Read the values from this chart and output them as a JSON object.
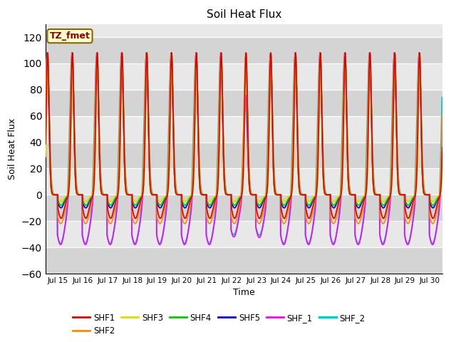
{
  "title": "Soil Heat Flux",
  "xlabel": "Time",
  "ylabel": "Soil Heat Flux",
  "ylim": [
    -60,
    130
  ],
  "yticks": [
    -60,
    -40,
    -20,
    0,
    20,
    40,
    60,
    80,
    100,
    120
  ],
  "xtick_labels": [
    "Jul 15",
    "Jul 16",
    "Jul 17",
    "Jul 18",
    "Jul 19",
    "Jul 20",
    "Jul 21",
    "Jul 22",
    "Jul 23",
    "Jul 24",
    "Jul 25",
    "Jul 26",
    "Jul 27",
    "Jul 28",
    "Jul 29",
    "Jul 30"
  ],
  "series": {
    "SHF1": {
      "color": "#dd0000",
      "lw": 1.2
    },
    "SHF2": {
      "color": "#ff8800",
      "lw": 1.2
    },
    "SHF3": {
      "color": "#dddd00",
      "lw": 1.2
    },
    "SHF4": {
      "color": "#00cc00",
      "lw": 1.2
    },
    "SHF5": {
      "color": "#0000dd",
      "lw": 1.2
    },
    "SHF_1": {
      "color": "#ff00ff",
      "lw": 1.2
    },
    "SHF_2": {
      "color": "#00cccc",
      "lw": 1.5
    }
  },
  "annotation_text": "TZ_fmet",
  "annotation_color": "#880000",
  "annotation_bg": "#ffffcc",
  "annotation_border": "#886600",
  "plot_bg_color": "#e8e8e8",
  "band_color": "#d4d4d4",
  "grid_line_color": "#ffffff",
  "fig_bg": "#ffffff"
}
